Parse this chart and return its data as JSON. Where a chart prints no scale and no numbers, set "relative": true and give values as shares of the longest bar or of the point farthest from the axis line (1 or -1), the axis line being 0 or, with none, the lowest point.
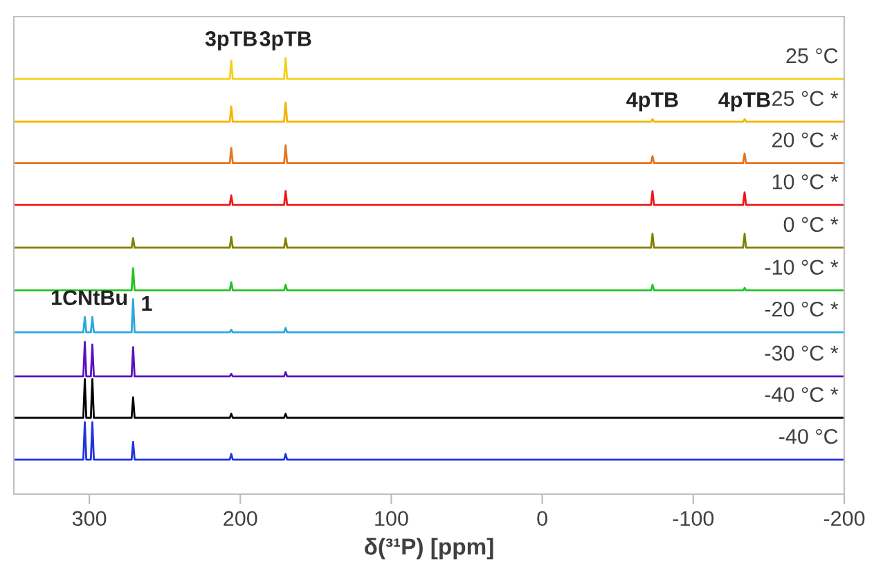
{
  "chart_data": {
    "type": "line",
    "relative": true,
    "xlabel": "δ(³¹P) [ppm]",
    "xlim": [
      350,
      -200
    ],
    "xticks": [
      300,
      200,
      100,
      0,
      -100,
      -200
    ],
    "tick_labels": "x",
    "grid": false,
    "legend": false,
    "marker": "none",
    "line_style": "solid",
    "series": [
      {
        "name": "25 °C",
        "color": "#f7cf1a",
        "x": [
          350,
          207,
          206,
          205,
          171,
          170,
          169,
          -200
        ],
        "values": [
          0.952,
          0.952,
          0.994,
          0.952,
          0.952,
          1.0,
          0.952,
          0.952
        ]
      },
      {
        "name": "25 °C *",
        "color": "#f5b400",
        "x": [
          350,
          207,
          206,
          205,
          171,
          170,
          169,
          -72,
          -73,
          -74,
          -133,
          -134,
          -135,
          -200
        ],
        "values": [
          0.854,
          0.854,
          0.889,
          0.854,
          0.854,
          0.898,
          0.854,
          0.854,
          0.86,
          0.854,
          0.854,
          0.86,
          0.854,
          0.854
        ]
      },
      {
        "name": "20 °C *",
        "color": "#e8741e",
        "x": [
          350,
          207,
          206,
          205,
          171,
          170,
          169,
          -72,
          -73,
          -74,
          -133,
          -134,
          -135,
          -200
        ],
        "values": [
          0.759,
          0.759,
          0.794,
          0.759,
          0.759,
          0.8,
          0.759,
          0.759,
          0.775,
          0.759,
          0.759,
          0.781,
          0.759,
          0.759
        ]
      },
      {
        "name": "10 °C *",
        "color": "#f01818",
        "x": [
          350,
          207,
          206,
          205,
          171,
          170,
          169,
          -72,
          -73,
          -74,
          -133,
          -134,
          -135,
          -200
        ],
        "values": [
          0.663,
          0.663,
          0.685,
          0.663,
          0.663,
          0.695,
          0.663,
          0.663,
          0.695,
          0.663,
          0.663,
          0.692,
          0.663,
          0.663
        ]
      },
      {
        "name": "0 °C *",
        "color": "#808000",
        "x": [
          350,
          272,
          271,
          270,
          207,
          206,
          205,
          171,
          170,
          169,
          -72,
          -73,
          -74,
          -133,
          -134,
          -135,
          -200
        ],
        "values": [
          0.565,
          0.565,
          0.587,
          0.565,
          0.565,
          0.59,
          0.565,
          0.565,
          0.587,
          0.565,
          0.565,
          0.597,
          0.565,
          0.565,
          0.597,
          0.565,
          0.565
        ]
      },
      {
        "name": "-10 °C *",
        "color": "#22c322",
        "x": [
          350,
          272,
          271,
          270,
          207,
          206,
          205,
          171,
          170,
          169,
          -72,
          -73,
          -74,
          -133,
          -134,
          -135,
          -200
        ],
        "values": [
          0.467,
          0.467,
          0.518,
          0.467,
          0.467,
          0.486,
          0.467,
          0.467,
          0.48,
          0.467,
          0.467,
          0.48,
          0.467,
          0.467,
          0.473,
          0.467,
          0.467
        ]
      },
      {
        "name": "-20 °C *",
        "color": "#2aa7dd",
        "x": [
          350,
          304,
          303,
          302,
          299,
          298,
          297,
          272,
          271,
          270,
          207,
          206,
          205,
          171,
          170,
          169,
          -200
        ],
        "values": [
          0.371,
          0.371,
          0.406,
          0.371,
          0.371,
          0.406,
          0.371,
          0.371,
          0.447,
          0.371,
          0.371,
          0.377,
          0.371,
          0.371,
          0.381,
          0.371,
          0.371
        ]
      },
      {
        "name": "-30 °C *",
        "color": "#5a12c0",
        "x": [
          350,
          304,
          303,
          302,
          299,
          298,
          297,
          272,
          271,
          270,
          207,
          206,
          205,
          171,
          170,
          169,
          -200
        ],
        "values": [
          0.27,
          0.27,
          0.349,
          0.27,
          0.27,
          0.343,
          0.27,
          0.27,
          0.337,
          0.27,
          0.27,
          0.276,
          0.27,
          0.27,
          0.28,
          0.27,
          0.27
        ]
      },
      {
        "name": "-40 °C *",
        "color": "#000000",
        "x": [
          350,
          304,
          303,
          302,
          299,
          298,
          297,
          272,
          271,
          270,
          207,
          206,
          205,
          171,
          170,
          169,
          -200
        ],
        "values": [
          0.175,
          0.175,
          0.264,
          0.175,
          0.175,
          0.264,
          0.175,
          0.175,
          0.222,
          0.175,
          0.175,
          0.184,
          0.175,
          0.175,
          0.184,
          0.175,
          0.175
        ]
      },
      {
        "name": "-40 °C",
        "color": "#1f33e0",
        "x": [
          350,
          304,
          303,
          302,
          299,
          298,
          297,
          272,
          271,
          270,
          207,
          206,
          205,
          171,
          170,
          169,
          -200
        ],
        "values": [
          0.079,
          0.079,
          0.165,
          0.079,
          0.079,
          0.165,
          0.079,
          0.079,
          0.12,
          0.079,
          0.079,
          0.092,
          0.079,
          0.079,
          0.092,
          0.079,
          0.079
        ]
      }
    ],
    "annotations": [
      {
        "text": "3pTB",
        "x": 206,
        "y": 1.0
      },
      {
        "text": "3pTB",
        "x": 170,
        "y": 1.0
      },
      {
        "text": "4pTB",
        "x": -73,
        "y": 0.86
      },
      {
        "text": "4pTB",
        "x": -134,
        "y": 0.86
      },
      {
        "text": "1CNtBu",
        "x": 300,
        "y": 0.406
      },
      {
        "text": "1",
        "x": 271,
        "y": 0.447
      }
    ]
  }
}
